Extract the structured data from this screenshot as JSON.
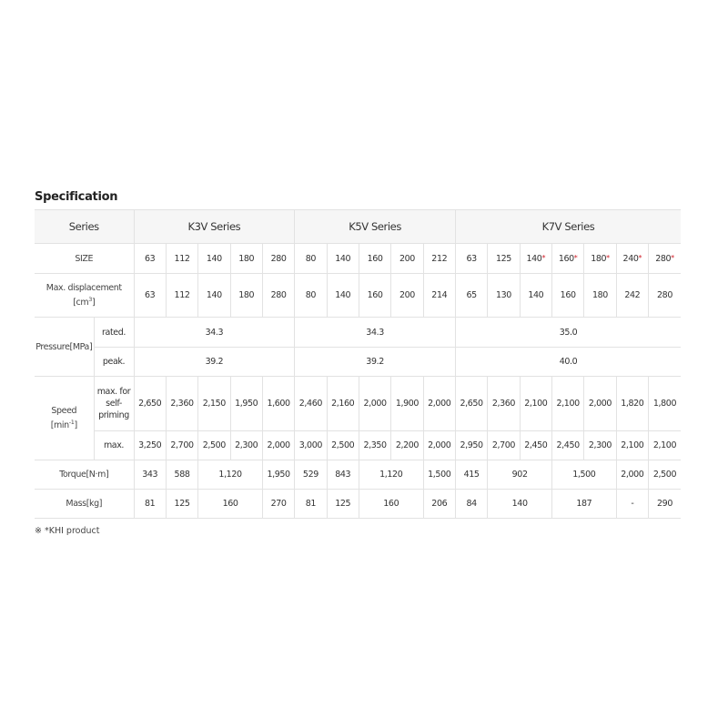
{
  "title": "Specification",
  "table": {
    "header": {
      "label": "Series",
      "groups": [
        "K3V Series",
        "K5V Series",
        "K7V Series"
      ],
      "group_sizes": [
        5,
        5,
        7
      ]
    },
    "rows": [
      {
        "label": {
          "text": "SIZE"
        },
        "height": 33,
        "cells": [
          "63",
          "112",
          "140",
          "180",
          "280",
          "80",
          "140",
          "160",
          "200",
          "212",
          "63",
          "125",
          {
            "text": "140",
            "note": "*"
          },
          {
            "text": "160",
            "note": "*"
          },
          {
            "text": "180",
            "note": "*"
          },
          {
            "text": "240",
            "note": "*"
          },
          {
            "text": "280",
            "note": "*"
          }
        ]
      },
      {
        "label": {
          "text": "Max. displacement",
          "unit": "[cm",
          "exp": "3",
          "close": "]"
        },
        "height": 48,
        "cells": [
          "63",
          "112",
          "140",
          "180",
          "280",
          "80",
          "140",
          "160",
          "200",
          "214",
          "65",
          "130",
          "140",
          "160",
          "180",
          "242",
          "280"
        ]
      },
      {
        "label": {
          "text": "Pressure[MPa]"
        },
        "subrows": [
          {
            "label": "rated.",
            "height": 33,
            "cells": [
              null,
              null,
              "34.3",
              null,
              null,
              null,
              null,
              "34.3",
              null,
              null,
              null,
              null,
              null,
              "35.0",
              null,
              null,
              null
            ]
          },
          {
            "label": "peak.",
            "height": 32,
            "cells": [
              null,
              null,
              "39.2",
              null,
              null,
              null,
              null,
              "39.2",
              null,
              null,
              null,
              null,
              null,
              "40.0",
              null,
              null,
              null
            ]
          }
        ]
      },
      {
        "label": {
          "text": "Speed",
          "unit": "[min",
          "exp": "-1",
          "close": "]"
        },
        "subrows": [
          {
            "label": "max. for self-priming",
            "height": 60,
            "cells": [
              "2,650",
              "2,360",
              "2,150",
              "1,950",
              "1,600",
              "2,460",
              "2,160",
              "2,000",
              "1,900",
              "2,000",
              "2,650",
              "2,360",
              "2,100",
              "2,100",
              "2,000",
              "1,820",
              "1,800"
            ]
          },
          {
            "label": "max.",
            "height": 32,
            "cells": [
              "3,250",
              "2,700",
              "2,500",
              "2,300",
              "2,000",
              "3,000",
              "2,500",
              "2,350",
              "2,200",
              "2,000",
              "2,950",
              "2,700",
              "2,450",
              "2,450",
              "2,300",
              "2,100",
              "2,100"
            ]
          }
        ]
      },
      {
        "label": {
          "text": "Torque[N·m]"
        },
        "height": 32,
        "cells": [
          "343",
          "588",
          "1,120",
          null,
          "1,950",
          "529",
          "843",
          "1,120",
          null,
          "1,500",
          "415",
          "902",
          null,
          "1,500",
          null,
          "2,000",
          "2,500"
        ]
      },
      {
        "label": {
          "text": "Mass[kg]"
        },
        "height": 32,
        "cells": [
          "81",
          "125",
          "160",
          null,
          "270",
          "81",
          "125",
          "160",
          null,
          "206",
          "84",
          "140",
          null,
          "187",
          null,
          "-",
          "290"
        ]
      }
    ]
  },
  "footnote": "※ *KHI product"
}
